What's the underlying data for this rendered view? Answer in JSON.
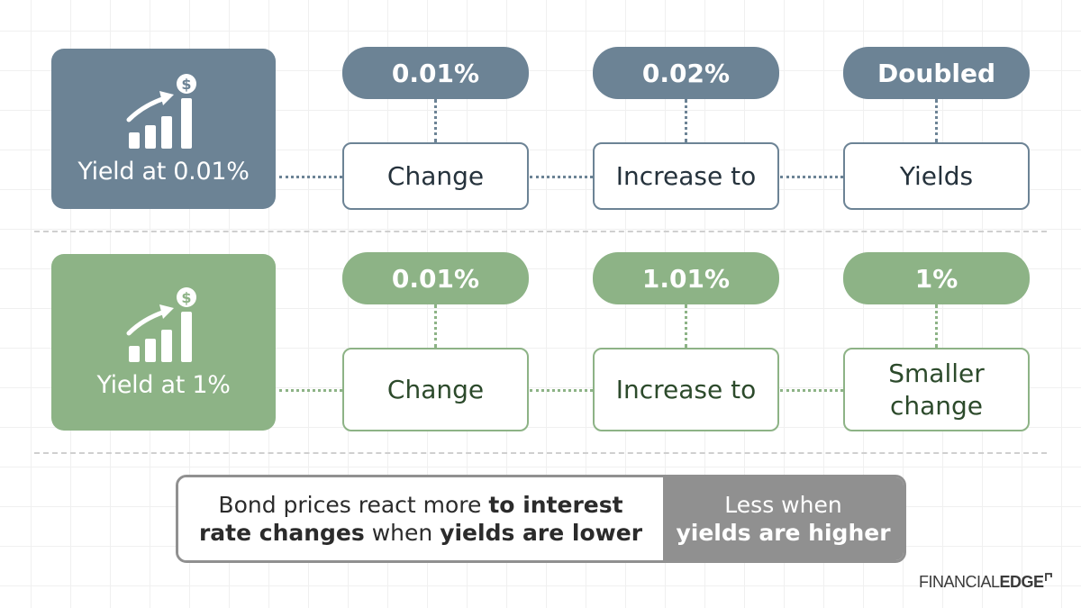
{
  "rows": [
    {
      "yield_label": "Yield at 0.01%",
      "steps": [
        {
          "pill": "0.01%",
          "box": "Change"
        },
        {
          "pill": "0.02%",
          "box": "Increase to"
        },
        {
          "pill": "Doubled",
          "box": "Yields"
        }
      ]
    },
    {
      "yield_label": "Yield at 1%",
      "steps": [
        {
          "pill": "0.01%",
          "box": "Change"
        },
        {
          "pill": "1.01%",
          "box": "Increase to"
        },
        {
          "pill": "1%",
          "box": "Smaller change"
        }
      ]
    }
  ],
  "summary": {
    "left_t1": "Bond prices react more ",
    "left_b1": "to interest rate changes",
    "left_t2": " when ",
    "left_b2": "yields are lower",
    "right_t1": "Less when",
    "right_b1": "yields are higher"
  },
  "logo": {
    "part1": "FINANCIAL",
    "part2": "EDGE"
  },
  "colors": {
    "slate": "#6c8395",
    "green": "#8db386",
    "summary_gray": "#909090"
  },
  "icon": "growth-chart-dollar-icon"
}
